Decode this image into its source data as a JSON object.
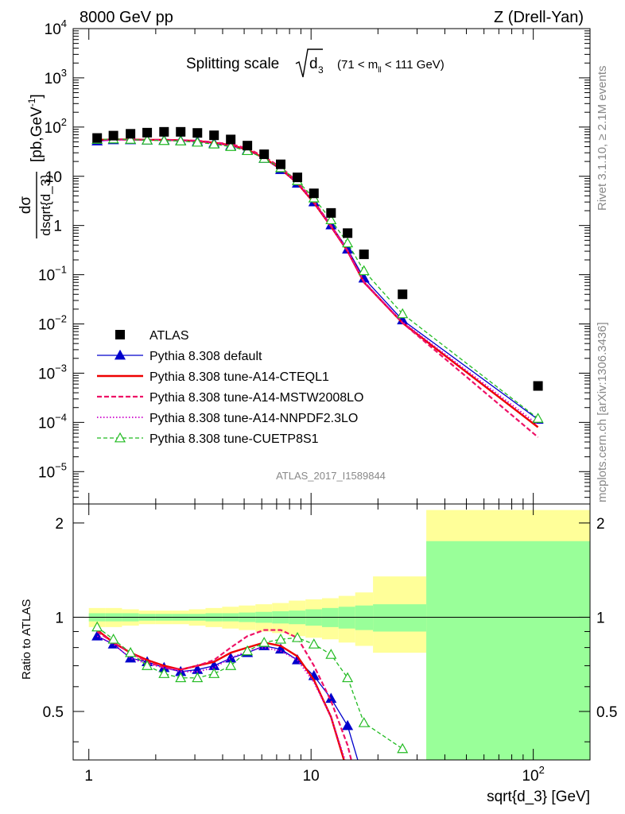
{
  "header": {
    "left": "8000 GeV pp",
    "right": "Z (Drell-Yan)"
  },
  "side_text": {
    "rivet": "Rivet 3.1.10, ≥ 2.1M events",
    "mcplots": "mcplots.cern.ch [arXiv:1306.3436]"
  },
  "title": {
    "main": "Splitting scale",
    "sym": "d",
    "sub": "3",
    "range_a": "(71 < m",
    "range_sub": "ll",
    "range_b": " < 111 GeV)"
  },
  "analysis_label": "ATLAS_2017_I1589844",
  "ylabel_top": {
    "num": "dσ",
    "den": "dsqrt{d_3}",
    "unit": "[pb,GeV",
    "unit_sup": "-1",
    "unit_close": "]"
  },
  "ylabel_bottom": "Ratio to ATLAS",
  "xlabel": "sqrt{d_3} [GeV]",
  "top_ticks": [
    {
      "v": 10000.0,
      "m": "10",
      "e": "4"
    },
    {
      "v": 1000.0,
      "m": "10",
      "e": "3"
    },
    {
      "v": 100.0,
      "m": "10",
      "e": "2"
    },
    {
      "v": 10,
      "m": "10",
      "e": ""
    },
    {
      "v": 1,
      "m": "1",
      "e": ""
    },
    {
      "v": 0.1,
      "m": "10",
      "e": "−1"
    },
    {
      "v": 0.01,
      "m": "10",
      "e": "−2"
    },
    {
      "v": 0.001,
      "m": "10",
      "e": "−3"
    },
    {
      "v": 0.0001,
      "m": "10",
      "e": "−4"
    },
    {
      "v": 1e-05,
      "m": "10",
      "e": "−5"
    }
  ],
  "ratio_ticks": [
    {
      "v": 2,
      "t": "2"
    },
    {
      "v": 1,
      "t": "1"
    },
    {
      "v": 0.5,
      "t": "0.5"
    }
  ],
  "x_ticks": [
    {
      "v": 1,
      "t": "1"
    },
    {
      "v": 10,
      "t": "10"
    },
    {
      "v": 100,
      "m": "10",
      "e": "2"
    }
  ],
  "legend": [
    {
      "key": "atlas",
      "label": "ATLAS"
    },
    {
      "key": "default",
      "label": "Pythia 8.308 default"
    },
    {
      "key": "cteql1",
      "label": "Pythia 8.308 tune-A14-CTEQL1"
    },
    {
      "key": "mstw",
      "label": "Pythia 8.308 tune-A14-MSTW2008LO"
    },
    {
      "key": "nnpdf",
      "label": "Pythia 8.308 tune-A14-NNPDF2.3LO"
    },
    {
      "key": "cuetp8s1",
      "label": "Pythia 8.308 tune-CUETP8S1"
    }
  ],
  "chart_data": {
    "type": "line",
    "xscale": "log",
    "yscale": "log",
    "xlim": [
      0.85,
      180
    ],
    "ylim_top": [
      2.2e-06,
      10000
    ],
    "ylim_ratio": [
      0.35,
      2.3
    ],
    "colors": {
      "atlas": "#000000",
      "default": "#0000cc",
      "cteql1": "#ee0000",
      "mstw": "#ee1166",
      "nnpdf": "#cc00cc",
      "cuetp8s1": "#22bb22",
      "band_outer": "#ffff99",
      "band_inner": "#99ff99"
    },
    "bins": [
      1.0,
      1.19,
      1.41,
      1.68,
      2.0,
      2.37,
      2.82,
      3.35,
      3.98,
      4.73,
      5.62,
      6.68,
      7.94,
      9.44,
      11.2,
      13.3,
      15.8,
      19.0,
      33.0,
      180.0
    ],
    "x": [
      1.09,
      1.29,
      1.54,
      1.83,
      2.18,
      2.59,
      3.08,
      3.66,
      4.35,
      5.17,
      6.15,
      7.3,
      8.68,
      10.3,
      12.3,
      14.6,
      17.3,
      25.8,
      105.0
    ],
    "series": [
      {
        "key": "atlas",
        "name": "ATLAS",
        "values": [
          60,
          67,
          73,
          77,
          80,
          80,
          76,
          68,
          56,
          42,
          28,
          17.5,
          9.5,
          4.5,
          1.8,
          0.7,
          0.26,
          0.04,
          0.00055
        ]
      },
      {
        "key": "default",
        "name": "Pythia 8.308 default",
        "values": [
          52,
          55,
          55,
          54,
          54,
          53,
          51,
          47,
          42,
          34,
          23,
          13.6,
          7.2,
          3.0,
          1.02,
          0.33,
          0.085,
          0.012,
          0.000115
        ]
      },
      {
        "key": "cteql1",
        "name": "Pythia 8.308 tune-A14-CTEQL1",
        "values": [
          55,
          56,
          56,
          55,
          55,
          54,
          52,
          48,
          43,
          35,
          23.5,
          14.2,
          7.2,
          2.9,
          0.95,
          0.3,
          0.07,
          0.0105,
          8e-05
        ]
      },
      {
        "key": "mstw",
        "name": "Pythia 8.308 tune-A14-MSTW2008LO",
        "values": [
          54,
          56,
          56,
          55,
          55,
          54,
          53,
          49,
          45,
          37,
          25,
          15.3,
          7.8,
          3.1,
          1.0,
          0.31,
          0.072,
          0.0105,
          5e-05
        ]
      },
      {
        "key": "nnpdf",
        "name": "Pythia 8.308 tune-A14-NNPDF2.3LO",
        "values": [
          52,
          55,
          55,
          54,
          54,
          53,
          51,
          47,
          42,
          34,
          23,
          13.8,
          7.3,
          2.9,
          0.95,
          0.3,
          0.07,
          0.011,
          9e-05
        ]
      },
      {
        "key": "cuetp8s1",
        "name": "Pythia 8.308 tune-CUETP8S1",
        "values": [
          56,
          57,
          56,
          54,
          53,
          52,
          49,
          45,
          40,
          33,
          23,
          14.8,
          8.1,
          3.6,
          1.3,
          0.44,
          0.12,
          0.016,
          0.00012
        ]
      }
    ],
    "ratio": {
      "default": [
        0.87,
        0.82,
        0.74,
        0.72,
        0.69,
        0.67,
        0.68,
        0.7,
        0.74,
        0.77,
        0.81,
        0.79,
        0.73,
        0.65,
        0.55,
        0.45,
        0.3
      ],
      "cteql1": [
        0.91,
        0.83,
        0.77,
        0.73,
        0.7,
        0.68,
        0.7,
        0.72,
        0.77,
        0.8,
        0.83,
        0.81,
        0.75,
        0.63,
        0.48,
        0.32,
        0.18
      ],
      "mstw": [
        0.9,
        0.83,
        0.77,
        0.72,
        0.69,
        0.68,
        0.7,
        0.73,
        0.8,
        0.87,
        0.91,
        0.91,
        0.86,
        0.7,
        0.54,
        0.39,
        0.24
      ],
      "nnpdf": [
        0.87,
        0.82,
        0.74,
        0.71,
        0.69,
        0.67,
        0.67,
        0.69,
        0.74,
        0.78,
        0.8,
        0.78,
        0.73,
        0.62,
        0.48,
        0.33,
        0.2
      ],
      "cuetp8s1": [
        0.93,
        0.85,
        0.77,
        0.7,
        0.66,
        0.64,
        0.64,
        0.66,
        0.7,
        0.78,
        0.83,
        0.85,
        0.86,
        0.82,
        0.76,
        0.64,
        0.46,
        0.38
      ]
    },
    "band_outer": [
      [
        0.93,
        1.07
      ],
      [
        0.93,
        1.07
      ],
      [
        0.94,
        1.06
      ],
      [
        0.95,
        1.05
      ],
      [
        0.95,
        1.05
      ],
      [
        0.95,
        1.05
      ],
      [
        0.94,
        1.06
      ],
      [
        0.93,
        1.07
      ],
      [
        0.92,
        1.08
      ],
      [
        0.91,
        1.09
      ],
      [
        0.9,
        1.1
      ],
      [
        0.89,
        1.11
      ],
      [
        0.87,
        1.13
      ],
      [
        0.86,
        1.14
      ],
      [
        0.85,
        1.15
      ],
      [
        0.83,
        1.17
      ],
      [
        0.81,
        1.2
      ],
      [
        0.77,
        1.35
      ],
      [
        0.3,
        2.2
      ]
    ],
    "band_inner": [
      [
        0.97,
        1.03
      ],
      [
        0.97,
        1.03
      ],
      [
        0.97,
        1.03
      ],
      [
        0.975,
        1.025
      ],
      [
        0.975,
        1.025
      ],
      [
        0.975,
        1.025
      ],
      [
        0.975,
        1.025
      ],
      [
        0.97,
        1.03
      ],
      [
        0.97,
        1.03
      ],
      [
        0.965,
        1.035
      ],
      [
        0.96,
        1.04
      ],
      [
        0.955,
        1.045
      ],
      [
        0.95,
        1.05
      ],
      [
        0.94,
        1.06
      ],
      [
        0.93,
        1.07
      ],
      [
        0.92,
        1.08
      ],
      [
        0.91,
        1.09
      ],
      [
        0.9,
        1.1
      ],
      [
        0.3,
        1.75
      ]
    ]
  }
}
